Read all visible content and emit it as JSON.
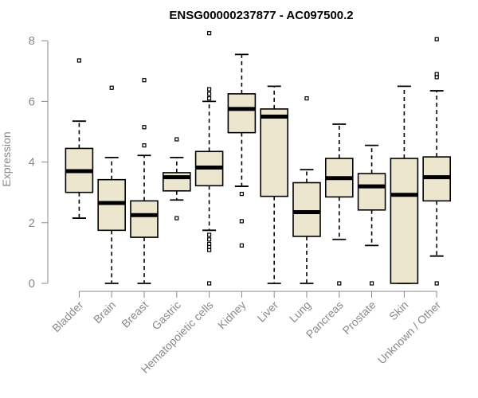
{
  "chart_data": {
    "type": "box",
    "title": "ENSG00000237877 - AC097500.2",
    "xlabel": "",
    "ylabel": "Expression",
    "ylim": [
      0,
      8.3
    ],
    "yticks": [
      0,
      2,
      4,
      6,
      8
    ],
    "categories": [
      "Bladder",
      "Brain",
      "Breast",
      "Gastric",
      "Hematopoietic cells",
      "Kidney",
      "Liver",
      "Lung",
      "Pancreas",
      "Prostate",
      "Skin",
      "Unknown / Other"
    ],
    "boxes": [
      {
        "name": "Bladder",
        "min": 2.15,
        "q1": 3.0,
        "median": 3.7,
        "q3": 4.45,
        "max": 5.35,
        "outliers": [
          7.35
        ]
      },
      {
        "name": "Brain",
        "min": 0.0,
        "q1": 1.75,
        "median": 2.65,
        "q3": 3.42,
        "max": 4.15,
        "outliers": [
          6.45
        ]
      },
      {
        "name": "Breast",
        "min": 0.0,
        "q1": 1.52,
        "median": 2.25,
        "q3": 2.72,
        "max": 4.22,
        "outliers": [
          4.55,
          5.15,
          6.7
        ]
      },
      {
        "name": "Gastric",
        "min": 2.75,
        "q1": 3.05,
        "median": 3.5,
        "q3": 3.65,
        "max": 4.15,
        "outliers": [
          2.15,
          4.75
        ]
      },
      {
        "name": "Hematopoietic cells",
        "min": 1.75,
        "q1": 3.22,
        "median": 3.82,
        "q3": 4.35,
        "max": 6.0,
        "outliers": [
          0.0,
          1.1,
          1.2,
          1.3,
          1.45,
          1.6,
          6.1,
          6.25,
          6.4,
          8.25
        ]
      },
      {
        "name": "Kidney",
        "min": 3.2,
        "q1": 4.97,
        "median": 5.75,
        "q3": 6.25,
        "max": 7.55,
        "outliers": [
          1.25,
          2.05,
          2.95
        ]
      },
      {
        "name": "Liver",
        "min": 0.0,
        "q1": 2.87,
        "median": 5.5,
        "q3": 5.75,
        "max": 6.5,
        "outliers": []
      },
      {
        "name": "Lung",
        "min": 0.0,
        "q1": 1.55,
        "median": 2.35,
        "q3": 3.32,
        "max": 3.75,
        "outliers": [
          6.1
        ]
      },
      {
        "name": "Pancreas",
        "min": 1.45,
        "q1": 2.85,
        "median": 3.47,
        "q3": 4.12,
        "max": 5.25,
        "outliers": [
          0.0
        ]
      },
      {
        "name": "Prostate",
        "min": 1.25,
        "q1": 2.42,
        "median": 3.2,
        "q3": 3.62,
        "max": 4.55,
        "outliers": [
          0.0
        ]
      },
      {
        "name": "Skin",
        "min": 0.0,
        "q1": 0.0,
        "median": 2.92,
        "q3": 4.12,
        "max": 6.5,
        "outliers": []
      },
      {
        "name": "Unknown / Other",
        "min": 0.9,
        "q1": 2.72,
        "median": 3.5,
        "q3": 4.17,
        "max": 6.35,
        "outliers": [
          0.0,
          6.8,
          6.9,
          8.05
        ]
      }
    ],
    "colors": {
      "box_fill": "#ede6cf",
      "axis": "#8a8a8a",
      "ink": "#000000"
    }
  }
}
